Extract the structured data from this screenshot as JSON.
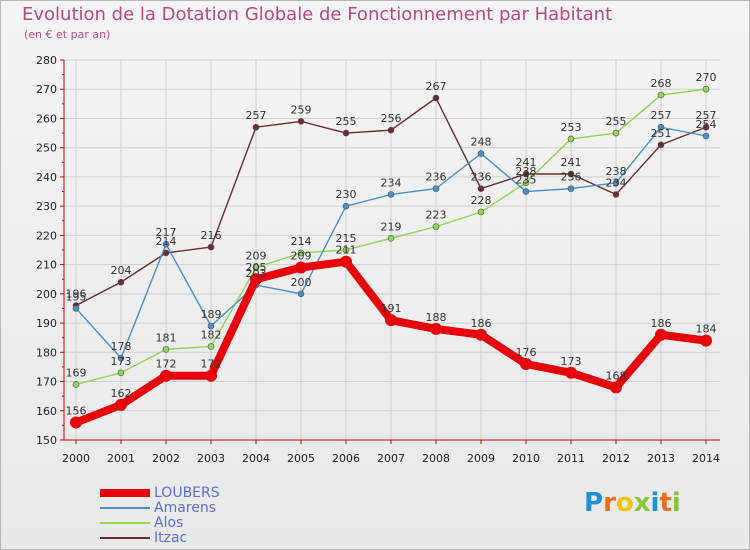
{
  "chart_data": {
    "type": "line",
    "title": "Evolution de la Dotation Globale de Fonctionnement par Habitant",
    "subtitle": "(en € et par an)",
    "x": [
      "2000",
      "2001",
      "2002",
      "2003",
      "2004",
      "2005",
      "2006",
      "2007",
      "2008",
      "2009",
      "2010",
      "2011",
      "2012",
      "2013",
      "2014"
    ],
    "ylim": [
      150,
      280
    ],
    "yticks": [
      150,
      160,
      170,
      180,
      190,
      200,
      210,
      220,
      230,
      240,
      250,
      260,
      270,
      280
    ],
    "grid": true,
    "series": [
      {
        "name": "LOUBERS",
        "color": "#e8000b",
        "values": [
          156,
          162,
          172,
          172,
          205,
          209,
          211,
          191,
          188,
          186,
          176,
          173,
          168,
          186,
          184
        ]
      },
      {
        "name": "Amarens",
        "color": "#4a90c8",
        "values": [
          195,
          178,
          217,
          189,
          203,
          200,
          230,
          234,
          236,
          248,
          235,
          236,
          238,
          257,
          254
        ]
      },
      {
        "name": "Alos",
        "color": "#8ed653",
        "values": [
          169,
          173,
          181,
          182,
          209,
          214,
          215,
          219,
          223,
          228,
          238,
          253,
          255,
          268,
          270
        ]
      },
      {
        "name": "Itzac",
        "color": "#6b2b2f",
        "values": [
          196,
          204,
          214,
          216,
          257,
          259,
          255,
          256,
          267,
          236,
          241,
          241,
          234,
          251,
          257
        ]
      }
    ]
  },
  "logo": {
    "text": "Proxiti",
    "letters": [
      "P",
      "r",
      "o",
      "x",
      "i",
      "t",
      "i"
    ]
  }
}
